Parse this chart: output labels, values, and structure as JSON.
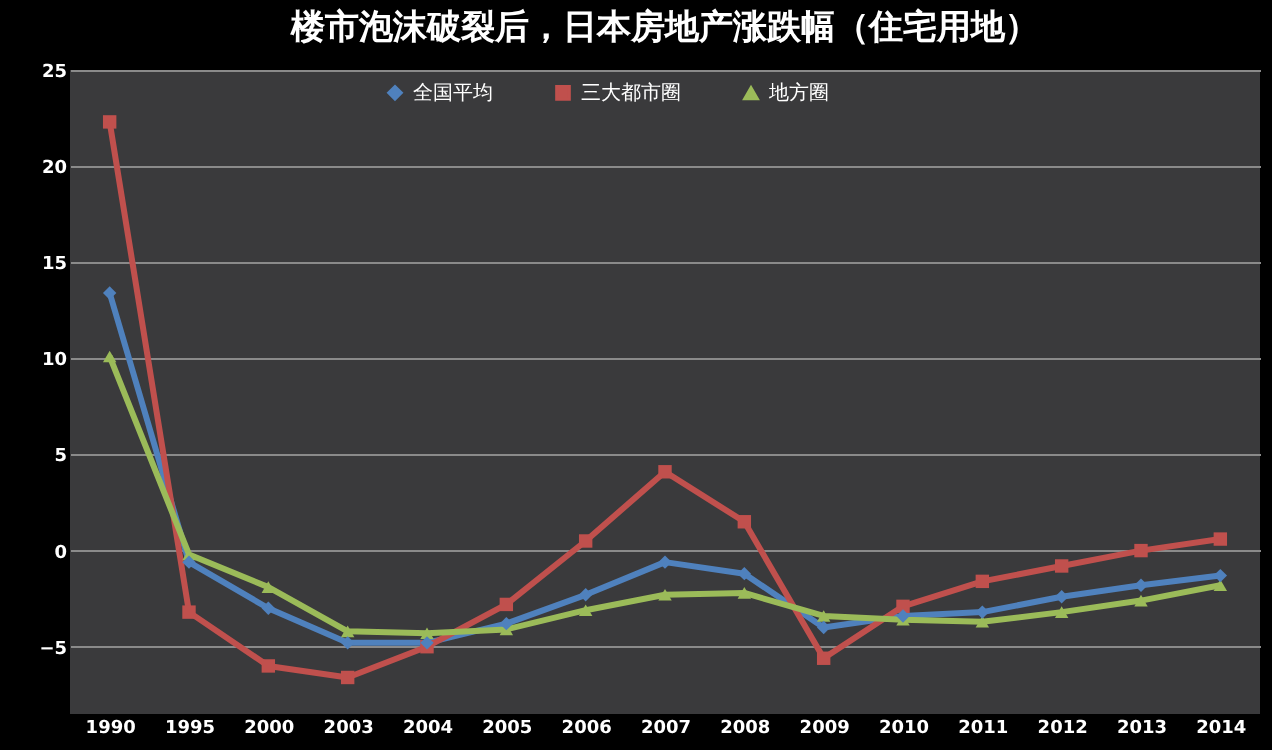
{
  "chart_data": {
    "type": "line",
    "title": "楼市泡沫破裂后，日本房地产涨跌幅（住宅用地）",
    "categories": [
      "1990",
      "1995",
      "2000",
      "2003",
      "2004",
      "2005",
      "2006",
      "2007",
      "2008",
      "2009",
      "2010",
      "2011",
      "2012",
      "2013",
      "2014"
    ],
    "series": [
      {
        "name": "全国平均",
        "color": "#4f81bd",
        "marker": "diamond",
        "values": [
          13.4,
          -0.6,
          -3.0,
          -4.8,
          -4.8,
          -3.8,
          -2.3,
          -0.6,
          -1.2,
          -4.0,
          -3.4,
          -3.2,
          -2.4,
          -1.8,
          -1.3
        ]
      },
      {
        "name": "三大都市圈",
        "color": "#c0504d",
        "marker": "square",
        "values": [
          22.3,
          -3.2,
          -6.0,
          -6.6,
          -5.0,
          -2.8,
          0.5,
          4.1,
          1.5,
          -5.6,
          -2.9,
          -1.6,
          -0.8,
          0.0,
          0.6
        ]
      },
      {
        "name": "地方圈",
        "color": "#9bbb59",
        "marker": "triangle",
        "values": [
          10.1,
          -0.2,
          -1.9,
          -4.2,
          -4.3,
          -4.1,
          -3.1,
          -2.3,
          -2.2,
          -3.4,
          -3.6,
          -3.7,
          -3.2,
          -2.6,
          -1.8
        ]
      }
    ],
    "ylim": [
      -8.5,
      25
    ],
    "yticks": [
      -5,
      0,
      5,
      10,
      15,
      20,
      25
    ],
    "grid": "y",
    "legend": "top",
    "line_style": "solid"
  }
}
